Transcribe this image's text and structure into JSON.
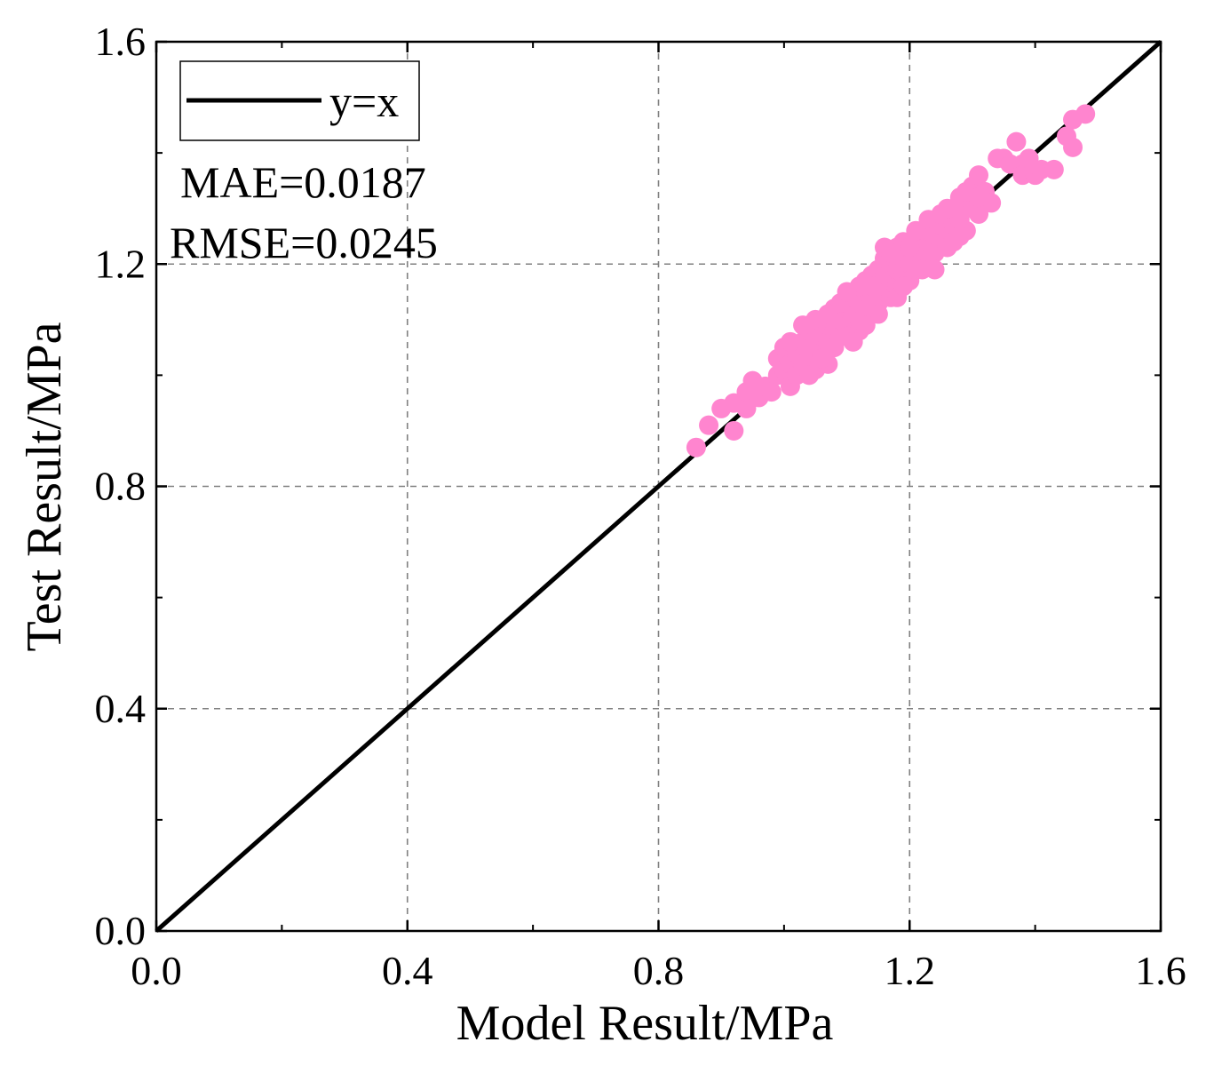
{
  "chart_data": {
    "type": "scatter",
    "xlabel": "Model Result/MPa",
    "ylabel": "Test Result/MPa",
    "xlim": [
      0.0,
      1.6
    ],
    "ylim": [
      0.0,
      1.6
    ],
    "xticks": [
      "0.0",
      "0.4",
      "0.8",
      "1.2",
      "1.6"
    ],
    "yticks": [
      "0.0",
      "0.4",
      "0.8",
      "1.2",
      "1.6"
    ],
    "xtick_values": [
      0.0,
      0.4,
      0.8,
      1.2,
      1.6
    ],
    "ytick_values": [
      0.0,
      0.4,
      0.8,
      1.2,
      1.6
    ],
    "minor_tick_step": 0.2,
    "grid": true,
    "legend": {
      "position": "top-left",
      "entries": [
        {
          "label": "y=x",
          "style": "line",
          "color": "#000000"
        }
      ]
    },
    "annotations": {
      "mae": "MAE=0.0187",
      "rmse": "RMSE=0.0245"
    },
    "reference_line": {
      "name": "y=x",
      "from": [
        0.0,
        0.0
      ],
      "to": [
        1.6,
        1.6
      ],
      "color": "#000000"
    },
    "series": [
      {
        "name": "samples",
        "color": "#ff85cf",
        "points": [
          [
            0.86,
            0.87
          ],
          [
            0.88,
            0.91
          ],
          [
            0.9,
            0.94
          ],
          [
            0.92,
            0.9
          ],
          [
            0.92,
            0.95
          ],
          [
            0.94,
            0.94
          ],
          [
            0.94,
            0.97
          ],
          [
            0.95,
            0.99
          ],
          [
            0.96,
            0.96
          ],
          [
            0.97,
            0.98
          ],
          [
            0.98,
            0.97
          ],
          [
            0.99,
            1.0
          ],
          [
            0.99,
            1.03
          ],
          [
            1.0,
            1.01
          ],
          [
            1.0,
            1.05
          ],
          [
            1.01,
            0.98
          ],
          [
            1.01,
            1.02
          ],
          [
            1.02,
            1.04
          ],
          [
            1.02,
            1.0
          ],
          [
            1.03,
            1.02
          ],
          [
            1.03,
            1.06
          ],
          [
            1.04,
            1.03
          ],
          [
            1.04,
            1.08
          ],
          [
            1.05,
            1.01
          ],
          [
            1.05,
            1.05
          ],
          [
            1.05,
            1.1
          ],
          [
            1.06,
            1.04
          ],
          [
            1.06,
            1.07
          ],
          [
            1.07,
            1.06
          ],
          [
            1.07,
            1.09
          ],
          [
            1.07,
            1.02
          ],
          [
            1.08,
            1.08
          ],
          [
            1.08,
            1.12
          ],
          [
            1.08,
            1.05
          ],
          [
            1.09,
            1.07
          ],
          [
            1.09,
            1.1
          ],
          [
            1.1,
            1.09
          ],
          [
            1.1,
            1.12
          ],
          [
            1.1,
            1.07
          ],
          [
            1.11,
            1.11
          ],
          [
            1.11,
            1.14
          ],
          [
            1.12,
            1.1
          ],
          [
            1.12,
            1.13
          ],
          [
            1.12,
            1.08
          ],
          [
            1.13,
            1.12
          ],
          [
            1.13,
            1.15
          ],
          [
            1.13,
            1.17
          ],
          [
            1.14,
            1.11
          ],
          [
            1.14,
            1.14
          ],
          [
            1.14,
            1.18
          ],
          [
            1.15,
            1.13
          ],
          [
            1.15,
            1.16
          ],
          [
            1.15,
            1.19
          ],
          [
            1.16,
            1.15
          ],
          [
            1.16,
            1.18
          ],
          [
            1.16,
            1.21
          ],
          [
            1.17,
            1.14
          ],
          [
            1.17,
            1.17
          ],
          [
            1.17,
            1.2
          ],
          [
            1.18,
            1.16
          ],
          [
            1.18,
            1.19
          ],
          [
            1.18,
            1.23
          ],
          [
            1.19,
            1.18
          ],
          [
            1.19,
            1.21
          ],
          [
            1.19,
            1.24
          ],
          [
            1.2,
            1.2
          ],
          [
            1.2,
            1.17
          ],
          [
            1.21,
            1.22
          ],
          [
            1.21,
            1.19
          ],
          [
            1.22,
            1.21
          ],
          [
            1.22,
            1.24
          ],
          [
            1.22,
            1.26
          ],
          [
            1.23,
            1.23
          ],
          [
            1.23,
            1.21
          ],
          [
            1.23,
            1.28
          ],
          [
            1.24,
            1.25
          ],
          [
            1.24,
            1.22
          ],
          [
            1.25,
            1.24
          ],
          [
            1.25,
            1.27
          ],
          [
            1.26,
            1.26
          ],
          [
            1.26,
            1.23
          ],
          [
            1.27,
            1.29
          ],
          [
            1.27,
            1.27
          ],
          [
            1.28,
            1.32
          ],
          [
            1.28,
            1.28
          ],
          [
            1.29,
            1.3
          ],
          [
            1.29,
            1.26
          ],
          [
            1.3,
            1.34
          ],
          [
            1.3,
            1.31
          ],
          [
            1.31,
            1.29
          ],
          [
            1.31,
            1.36
          ],
          [
            1.32,
            1.33
          ],
          [
            1.33,
            1.31
          ],
          [
            1.34,
            1.39
          ],
          [
            1.35,
            1.39
          ],
          [
            1.36,
            1.38
          ],
          [
            1.37,
            1.42
          ],
          [
            1.38,
            1.38
          ],
          [
            1.38,
            1.36
          ],
          [
            1.39,
            1.39
          ],
          [
            1.4,
            1.36
          ],
          [
            1.41,
            1.37
          ],
          [
            1.43,
            1.37
          ],
          [
            1.45,
            1.43
          ],
          [
            1.46,
            1.41
          ],
          [
            1.46,
            1.46
          ],
          [
            1.48,
            1.47
          ],
          [
            1.06,
            1.03
          ],
          [
            1.09,
            1.13
          ],
          [
            1.12,
            1.16
          ],
          [
            1.15,
            1.11
          ],
          [
            1.18,
            1.14
          ],
          [
            1.2,
            1.23
          ],
          [
            1.24,
            1.19
          ],
          [
            1.27,
            1.24
          ],
          [
            1.29,
            1.33
          ],
          [
            1.11,
            1.06
          ],
          [
            1.03,
            1.09
          ],
          [
            1.01,
            1.06
          ],
          [
            1.16,
            1.23
          ],
          [
            1.19,
            1.16
          ],
          [
            1.21,
            1.26
          ],
          [
            1.25,
            1.29
          ],
          [
            1.13,
            1.09
          ],
          [
            1.07,
            1.11
          ],
          [
            1.04,
            1.0
          ],
          [
            1.1,
            1.15
          ],
          [
            1.14,
            1.16
          ],
          [
            1.17,
            1.22
          ],
          [
            1.22,
            1.19
          ],
          [
            1.26,
            1.3
          ],
          [
            1.31,
            1.32
          ],
          [
            1.28,
            1.25
          ]
        ]
      }
    ]
  }
}
